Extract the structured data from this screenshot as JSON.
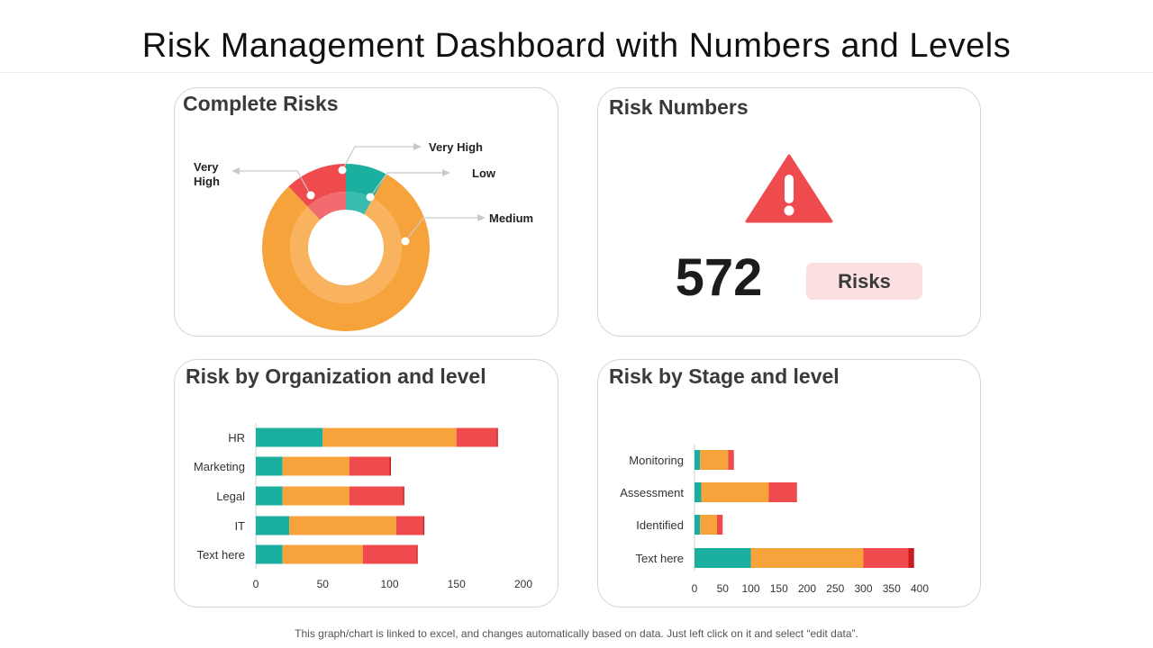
{
  "page": {
    "title": "Risk Management Dashboard with Numbers and Levels",
    "footer": "This graph/chart is linked to excel, and changes automatically based on data. Just left click on it and select “edit data”."
  },
  "panels": {
    "complete_risks": {
      "title": "Complete Risks"
    },
    "risk_numbers": {
      "title": "Risk Numbers",
      "value": "572",
      "badge": "Risks",
      "icon": "warning-triangle-icon"
    },
    "risk_by_org": {
      "title": "Risk by Organization and level"
    },
    "risk_by_stage": {
      "title": "Risk by Stage and level"
    }
  },
  "colors": {
    "teal": "#1aaf9e",
    "orange": "#f7a33b",
    "red": "#ef4a4d",
    "dark_red": "#c81c1f",
    "badge_bg": "#fce0e1",
    "alert": "#ef4a4d"
  },
  "chart_data": [
    {
      "type": "pie",
      "subtype": "donut",
      "labels_outer": [
        "Very High",
        "Low",
        "Medium"
      ],
      "labels_inner": [
        "Very High"
      ],
      "outer_ring": [
        {
          "label": "Very High",
          "value": 12,
          "color": "#ef4a4d"
        },
        {
          "label": "Low",
          "value": 8,
          "color": "#1aaf9e"
        },
        {
          "label": "Medium",
          "value": 80,
          "color": "#f7a33b"
        }
      ],
      "inner_ring": [
        {
          "label": "Very High",
          "value": 12,
          "color": "#f26b6e"
        },
        {
          "label": "Low",
          "value": 8,
          "color": "#39bdae"
        },
        {
          "label": "Medium",
          "value": 80,
          "color": "#f9b25e"
        }
      ]
    },
    {
      "type": "bar",
      "orientation": "horizontal",
      "stacked": true,
      "categories": [
        "HR",
        "Marketing",
        "Legal",
        "IT",
        "Text here"
      ],
      "series": [
        {
          "values": [
            50,
            20,
            20,
            25,
            20
          ],
          "color": "#1aaf9e"
        },
        {
          "values": [
            100,
            50,
            50,
            80,
            60
          ],
          "color": "#f7a33b"
        },
        {
          "values": [
            30,
            30,
            40,
            20,
            40
          ],
          "color": "#ef4a4d"
        },
        {
          "values": [
            1,
            1,
            1,
            1,
            1
          ],
          "color": "#c81c1f"
        }
      ],
      "xlim": [
        0,
        200
      ],
      "xticks": [
        "0",
        "50",
        "100",
        "150",
        "200"
      ]
    },
    {
      "type": "bar",
      "orientation": "horizontal",
      "stacked": true,
      "categories": [
        "Monitoring",
        "Assessment",
        "Identified",
        "Text here"
      ],
      "series": [
        {
          "values": [
            10,
            12,
            10,
            100
          ],
          "color": "#1aaf9e"
        },
        {
          "values": [
            50,
            120,
            30,
            200
          ],
          "color": "#f7a33b"
        },
        {
          "values": [
            10,
            50,
            10,
            80
          ],
          "color": "#ef4a4d"
        },
        {
          "values": [
            0,
            0,
            0,
            10
          ],
          "color": "#c81c1f"
        }
      ],
      "xlim": [
        0,
        400
      ],
      "xticks": [
        "0",
        "50",
        "100",
        "150",
        "200",
        "250",
        "300",
        "350",
        "400"
      ]
    }
  ]
}
